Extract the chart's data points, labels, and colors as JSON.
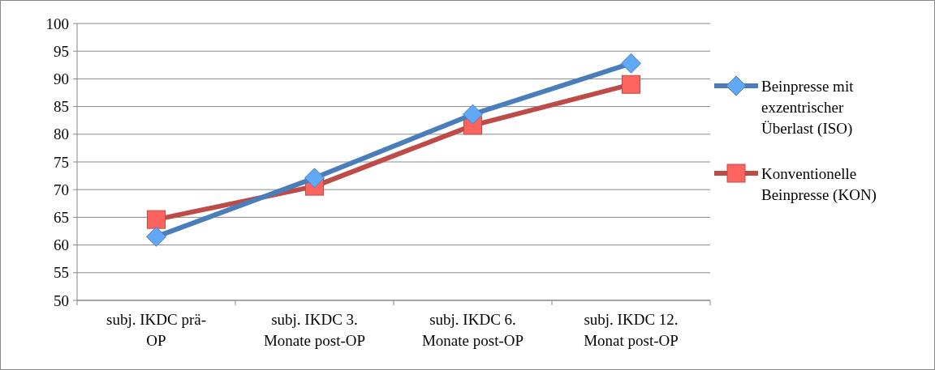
{
  "chart_data": {
    "type": "line",
    "categories": [
      "subj. IKDC prä-OP",
      "subj. IKDC 3. Monate post-OP",
      "subj. IKDC 6. Monate post-OP",
      "subj. IKDC 12. Monat post-OP"
    ],
    "series": [
      {
        "name": "Beinpresse mit exzentrischer Überlast (ISO)",
        "color": "#4a7ebb",
        "values": [
          61.5,
          72.1,
          83.6,
          92.8
        ],
        "marker": "diamond"
      },
      {
        "name": "Konventionelle Beinpresse (KON)",
        "color": "#be4b48",
        "values": [
          64.6,
          70.6,
          81.6,
          89.0
        ],
        "marker": "square"
      }
    ],
    "ylim": [
      50,
      100
    ],
    "yticks": [
      50,
      55,
      60,
      65,
      70,
      75,
      80,
      85,
      90,
      95,
      100
    ],
    "grid": "y",
    "legend": "right"
  }
}
